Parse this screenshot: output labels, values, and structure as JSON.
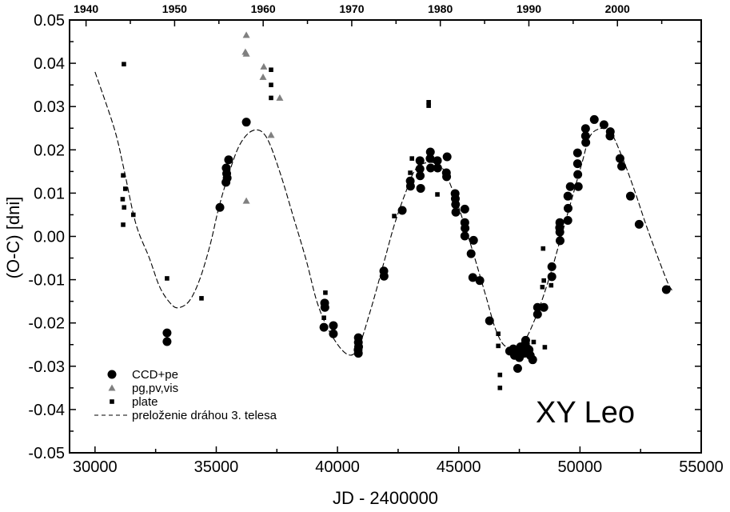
{
  "chart_data": {
    "type": "scatter",
    "title": "",
    "annotation": "XY Leo",
    "xlabel": "JD - 2400000",
    "ylabel": "(O-C) [dni]",
    "xlim": [
      28950,
      55000
    ],
    "ylim": [
      -0.05,
      0.05
    ],
    "grid": false,
    "legend_position": "bottom-left",
    "x_ticks": [
      30000,
      35000,
      40000,
      45000,
      50000,
      55000
    ],
    "x_tick_labels": [
      "30000",
      "35000",
      "40000",
      "45000",
      "50000",
      "55000"
    ],
    "y_ticks": [
      0.05,
      0.04,
      0.03,
      0.02,
      0.01,
      0.0,
      -0.01,
      -0.02,
      -0.03,
      -0.04,
      -0.05
    ],
    "y_tick_labels": [
      "0.05",
      "0.04",
      "0.03",
      "0.02",
      "0.01",
      "0.00",
      "-0.01",
      "-0.02",
      "-0.03",
      "-0.04",
      "-0.05"
    ],
    "top_axis": {
      "label_years": [
        "1940",
        "1950",
        "1960",
        "1970",
        "1980",
        "1990",
        "2000"
      ],
      "years": [
        1940,
        1950,
        1960,
        1970,
        1980,
        1990,
        2000
      ],
      "jd_of_year_2000": 51545,
      "days_per_year": 365.25
    },
    "series": [
      {
        "name": "CCD+pe",
        "marker": "circle",
        "color": "#000000",
        "x": [
          36240,
          35510,
          35410,
          35430,
          35450,
          35400,
          35150,
          32970,
          32970,
          39470,
          39480,
          39440,
          39830,
          39830,
          40860,
          40860,
          40870,
          40850,
          40860,
          41910,
          41920,
          42670,
          43000,
          43010,
          43400,
          43400,
          43410,
          43430,
          43830,
          43820,
          43840,
          44120,
          44130,
          44520,
          44490,
          44500,
          44850,
          44860,
          44870,
          44880,
          45250,
          45250,
          45260,
          45250,
          45610,
          45510,
          45580,
          45870,
          46270,
          47100,
          47250,
          47400,
          47550,
          47650,
          47750,
          47850,
          47950,
          48050,
          47300,
          47500,
          47700,
          47900,
          47430,
          47760,
          48250,
          48250,
          48510,
          48840,
          48840,
          49170,
          49170,
          49180,
          49160,
          49500,
          49510,
          49500,
          49600,
          49930,
          49900,
          49900,
          49910,
          50230,
          50230,
          50240,
          50590,
          50990,
          51250,
          51240,
          51650,
          51720,
          52080,
          52440,
          53560
        ],
        "y": [
          0.0264,
          0.0177,
          0.0158,
          0.0145,
          0.0135,
          0.0125,
          0.0067,
          -0.0223,
          -0.0243,
          -0.0154,
          -0.0164,
          -0.021,
          -0.0206,
          -0.0225,
          -0.0234,
          -0.0245,
          -0.0255,
          -0.0262,
          -0.027,
          -0.008,
          -0.0092,
          0.006,
          0.0128,
          0.0116,
          0.0175,
          0.0156,
          0.014,
          0.0111,
          0.0195,
          0.018,
          0.0158,
          0.0175,
          0.0158,
          0.0184,
          0.0147,
          0.0138,
          0.0099,
          0.0087,
          0.0074,
          0.0056,
          0.0063,
          0.0032,
          0.0019,
          0.0001,
          -0.0009,
          -0.004,
          -0.0095,
          -0.0102,
          -0.0195,
          -0.0265,
          -0.026,
          -0.027,
          -0.0255,
          -0.0265,
          -0.0248,
          -0.026,
          -0.0275,
          -0.0285,
          -0.0275,
          -0.028,
          -0.027,
          -0.0262,
          -0.0305,
          -0.024,
          -0.0164,
          -0.018,
          -0.0164,
          -0.007,
          -0.0093,
          0.0032,
          0.001,
          -0.001,
          0.002,
          0.0093,
          0.0065,
          0.0037,
          0.0115,
          0.0115,
          0.0193,
          0.0168,
          0.0143,
          0.0249,
          0.0232,
          0.0217,
          0.027,
          0.0258,
          0.0242,
          0.0232,
          0.018,
          0.0162,
          0.0093,
          0.0028,
          -0.0123
        ]
      },
      {
        "name": "pg,pv,vis",
        "marker": "triangle",
        "color": "#808080",
        "x": [
          36240,
          36200,
          36240,
          36960,
          36930,
          37620,
          37260,
          36240
        ],
        "y": [
          0.0465,
          0.0426,
          0.0422,
          0.0392,
          0.0368,
          0.032,
          0.0234,
          0.0082
        ]
      },
      {
        "name": "plate",
        "marker": "square",
        "color": "#000000",
        "x": [
          31190,
          31160,
          31250,
          31140,
          31200,
          31580,
          31160,
          32970,
          34390,
          37260,
          37260,
          37260,
          39500,
          39440,
          43070,
          43000,
          42340,
          44120,
          43760,
          43760,
          46630,
          46630,
          46700,
          46700,
          48090,
          48480,
          48510,
          48450,
          48810,
          48550
        ],
        "y": [
          0.0398,
          0.0141,
          0.011,
          0.0086,
          0.0067,
          0.005,
          0.0027,
          -0.0097,
          -0.0143,
          0.0385,
          0.035,
          0.032,
          -0.013,
          -0.0188,
          0.018,
          0.0147,
          0.0047,
          0.0097,
          0.031,
          0.0302,
          -0.0225,
          -0.0253,
          -0.032,
          -0.035,
          -0.0244,
          -0.0028,
          -0.0102,
          -0.0117,
          -0.0113,
          -0.0256
        ]
      },
      {
        "name": "preloženie dráhou 3. telesa",
        "marker": "dashed-line",
        "color": "#000000",
        "x": [
          30000,
          30790,
          31190,
          31680,
          32240,
          32670,
          33100,
          33430,
          33890,
          34320,
          34750,
          35090,
          35480,
          35970,
          36530,
          37060,
          37620,
          38180,
          38710,
          39170,
          39700,
          40360,
          40830,
          41350,
          41910,
          42340,
          42800,
          43230,
          43800,
          44320,
          44790,
          45450,
          46110,
          46530,
          46960,
          47620,
          48180,
          48750,
          49170,
          49600,
          50070,
          50400,
          50830,
          51250,
          51720,
          52250,
          52810,
          53560,
          53800
        ],
        "y": [
          0.038,
          0.025,
          0.0156,
          0.003,
          -0.005,
          -0.0117,
          -0.0154,
          -0.0165,
          -0.0149,
          -0.0099,
          -0.0019,
          0.0063,
          0.0138,
          0.0212,
          0.0245,
          0.023,
          0.0149,
          0.0045,
          -0.0055,
          -0.0154,
          -0.0223,
          -0.0271,
          -0.026,
          -0.0173,
          -0.0061,
          0.0026,
          0.01,
          0.0156,
          0.0171,
          0.0158,
          0.01,
          -0.0011,
          -0.0136,
          -0.0216,
          -0.0255,
          -0.0247,
          -0.0186,
          -0.0093,
          -0.0011,
          0.0074,
          0.0167,
          0.023,
          0.0249,
          0.0242,
          0.0186,
          0.0106,
          0.0013,
          -0.0099,
          -0.0125
        ]
      }
    ]
  }
}
